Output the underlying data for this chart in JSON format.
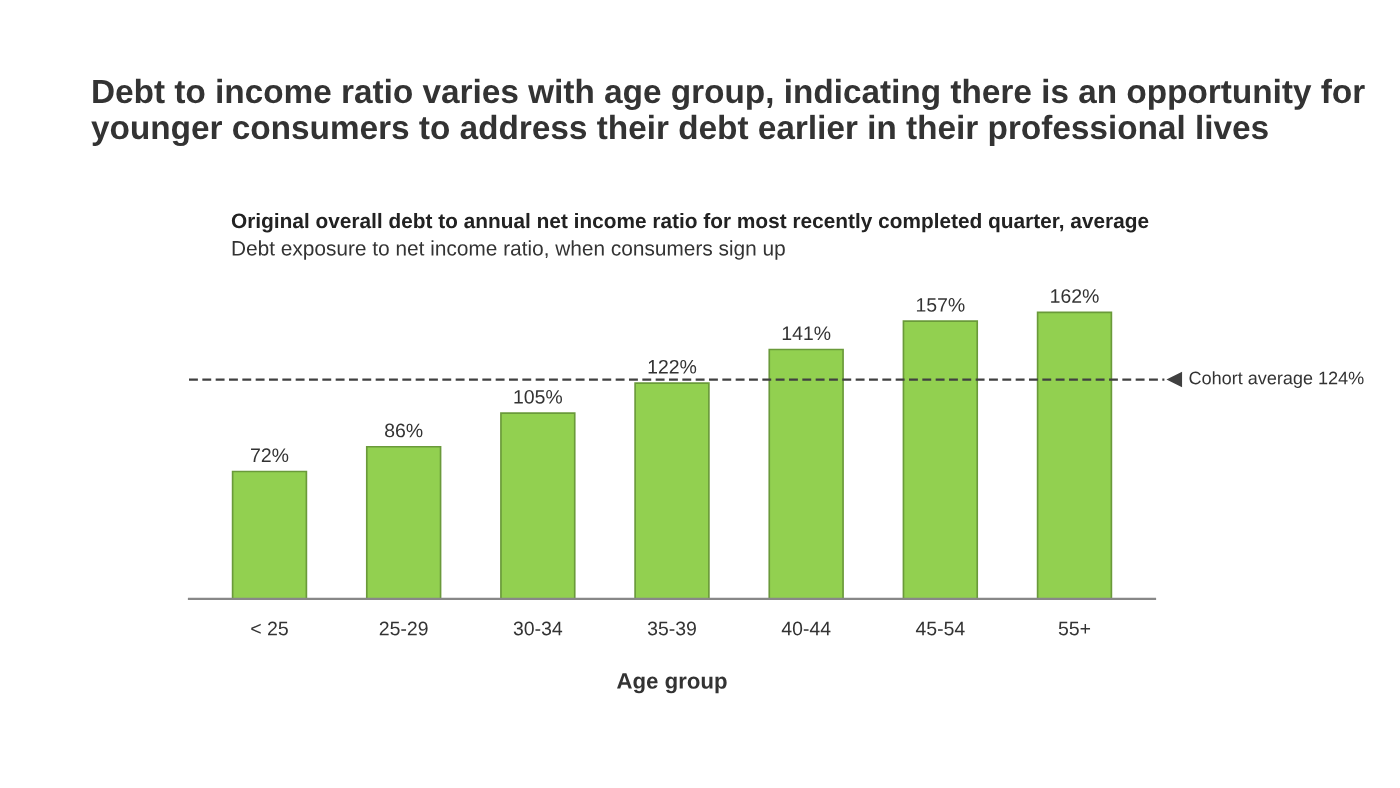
{
  "chart_data": {
    "type": "bar",
    "title": "Debt to income ratio varies with age group, indicating there is an opportunity for\nyounger consumers to address their debt earlier in their professional lives",
    "subtitle": "Original overall debt to annual net income ratio for most recently completed quarter, average",
    "annotations": [
      "Debt exposure to net income ratio, when consumers sign up"
    ],
    "xlabel": "Age group",
    "categories": [
      "< 25",
      "25-29",
      "30-34",
      "35-39",
      "40-44",
      "45-54",
      "55+"
    ],
    "values": [
      72,
      86,
      105,
      122,
      141,
      157,
      162
    ],
    "value_labels": [
      "72%",
      "86%",
      "105%",
      "122%",
      "141%",
      "157%",
      "162%"
    ],
    "color": "#92d050",
    "ref_lines": [
      {
        "axis": "y",
        "value": 124,
        "label": "Cohort average 124%",
        "line_style": "dashed",
        "color": "#404040"
      }
    ],
    "tick_labels": "x",
    "grid": false,
    "legend": false
  }
}
